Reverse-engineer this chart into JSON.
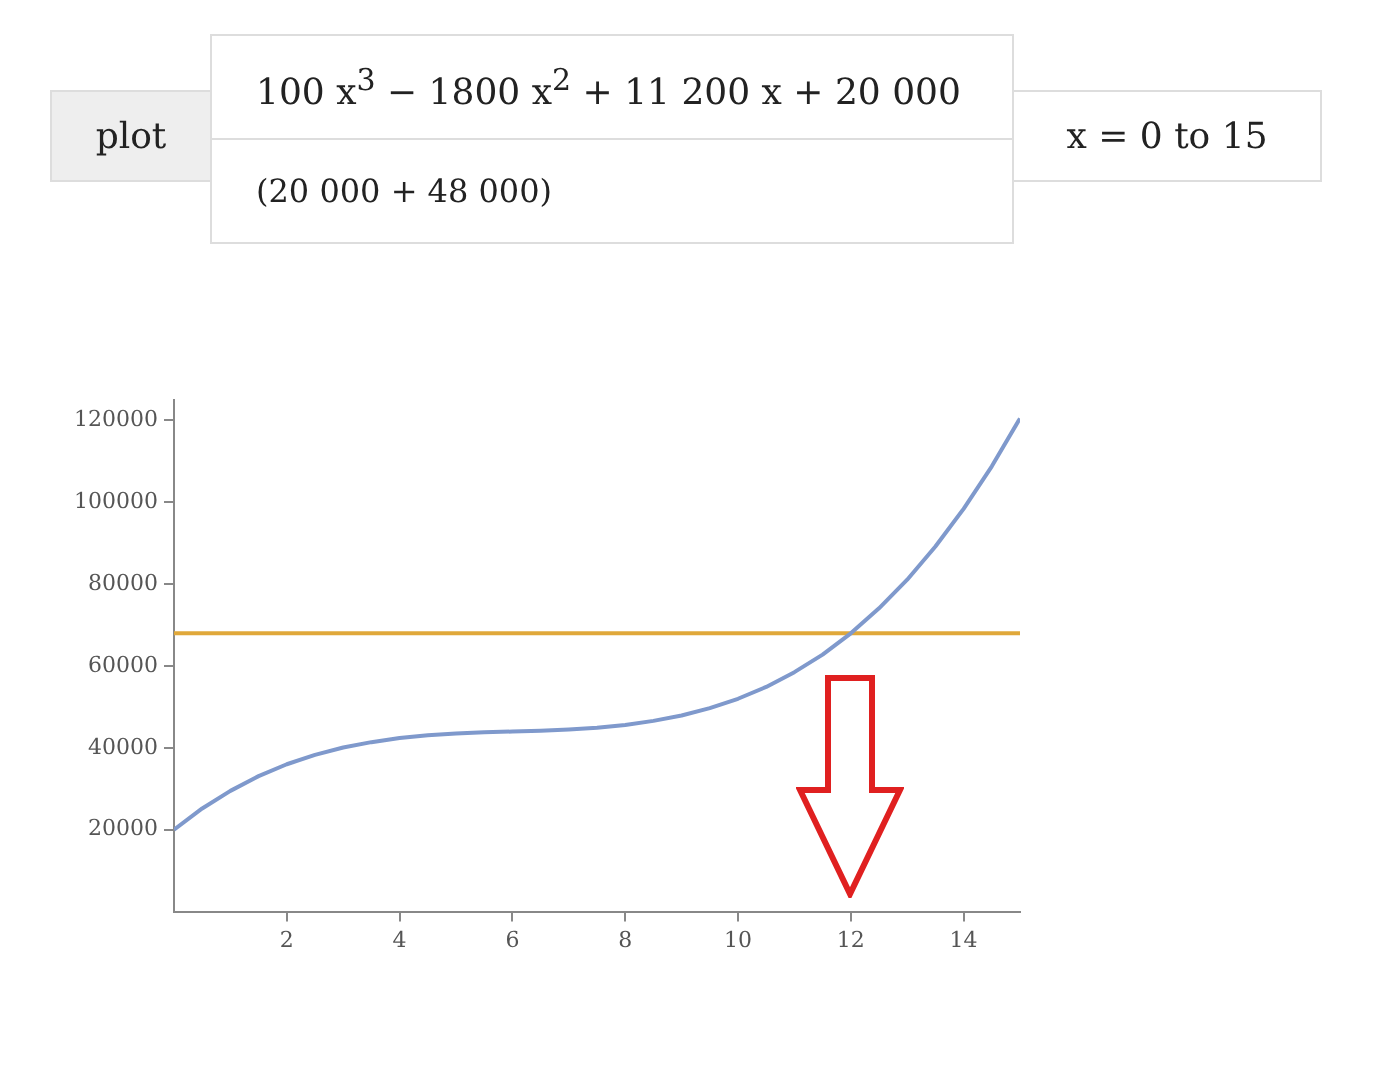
{
  "chart_data": {
    "type": "line",
    "annotations": [
      "plot",
      "100 x$^{3}$ − 1800 x$^{2}$ + 11 200 x + 20 000",
      "(20 000 + 48 000)",
      "x = 0 to 15"
    ],
    "xlim": [
      0,
      15
    ],
    "ylim": [
      0,
      125000
    ],
    "xticks": [
      2,
      4,
      6,
      8,
      10,
      12,
      14
    ],
    "yticks": [
      20000,
      40000,
      60000,
      80000,
      100000,
      120000
    ],
    "marker": "none",
    "series": [
      {
        "color": "#7f99cc",
        "x": [
          0,
          0.5,
          1,
          1.5,
          2,
          2.5,
          3,
          3.5,
          4,
          4.5,
          5,
          5.5,
          6,
          6.5,
          7,
          7.5,
          8,
          8.5,
          9,
          9.5,
          10,
          10.5,
          11,
          11.5,
          12,
          12.5,
          13,
          13.5,
          14,
          14.5,
          15
        ],
        "values": [
          20000,
          25200,
          29500,
          33100,
          36000,
          38300,
          40100,
          41400,
          42400,
          43100,
          43500,
          43800,
          44000,
          44200,
          44500,
          44900,
          45600,
          46600,
          47900,
          49700,
          52000,
          54900,
          58500,
          62800,
          68000,
          74100,
          81100,
          89200,
          98400,
          108800,
          120500
        ]
      },
      {
        "color": "#e0a83a",
        "x": [
          0,
          15
        ],
        "values": [
          68000,
          68000
        ]
      }
    ]
  }
}
